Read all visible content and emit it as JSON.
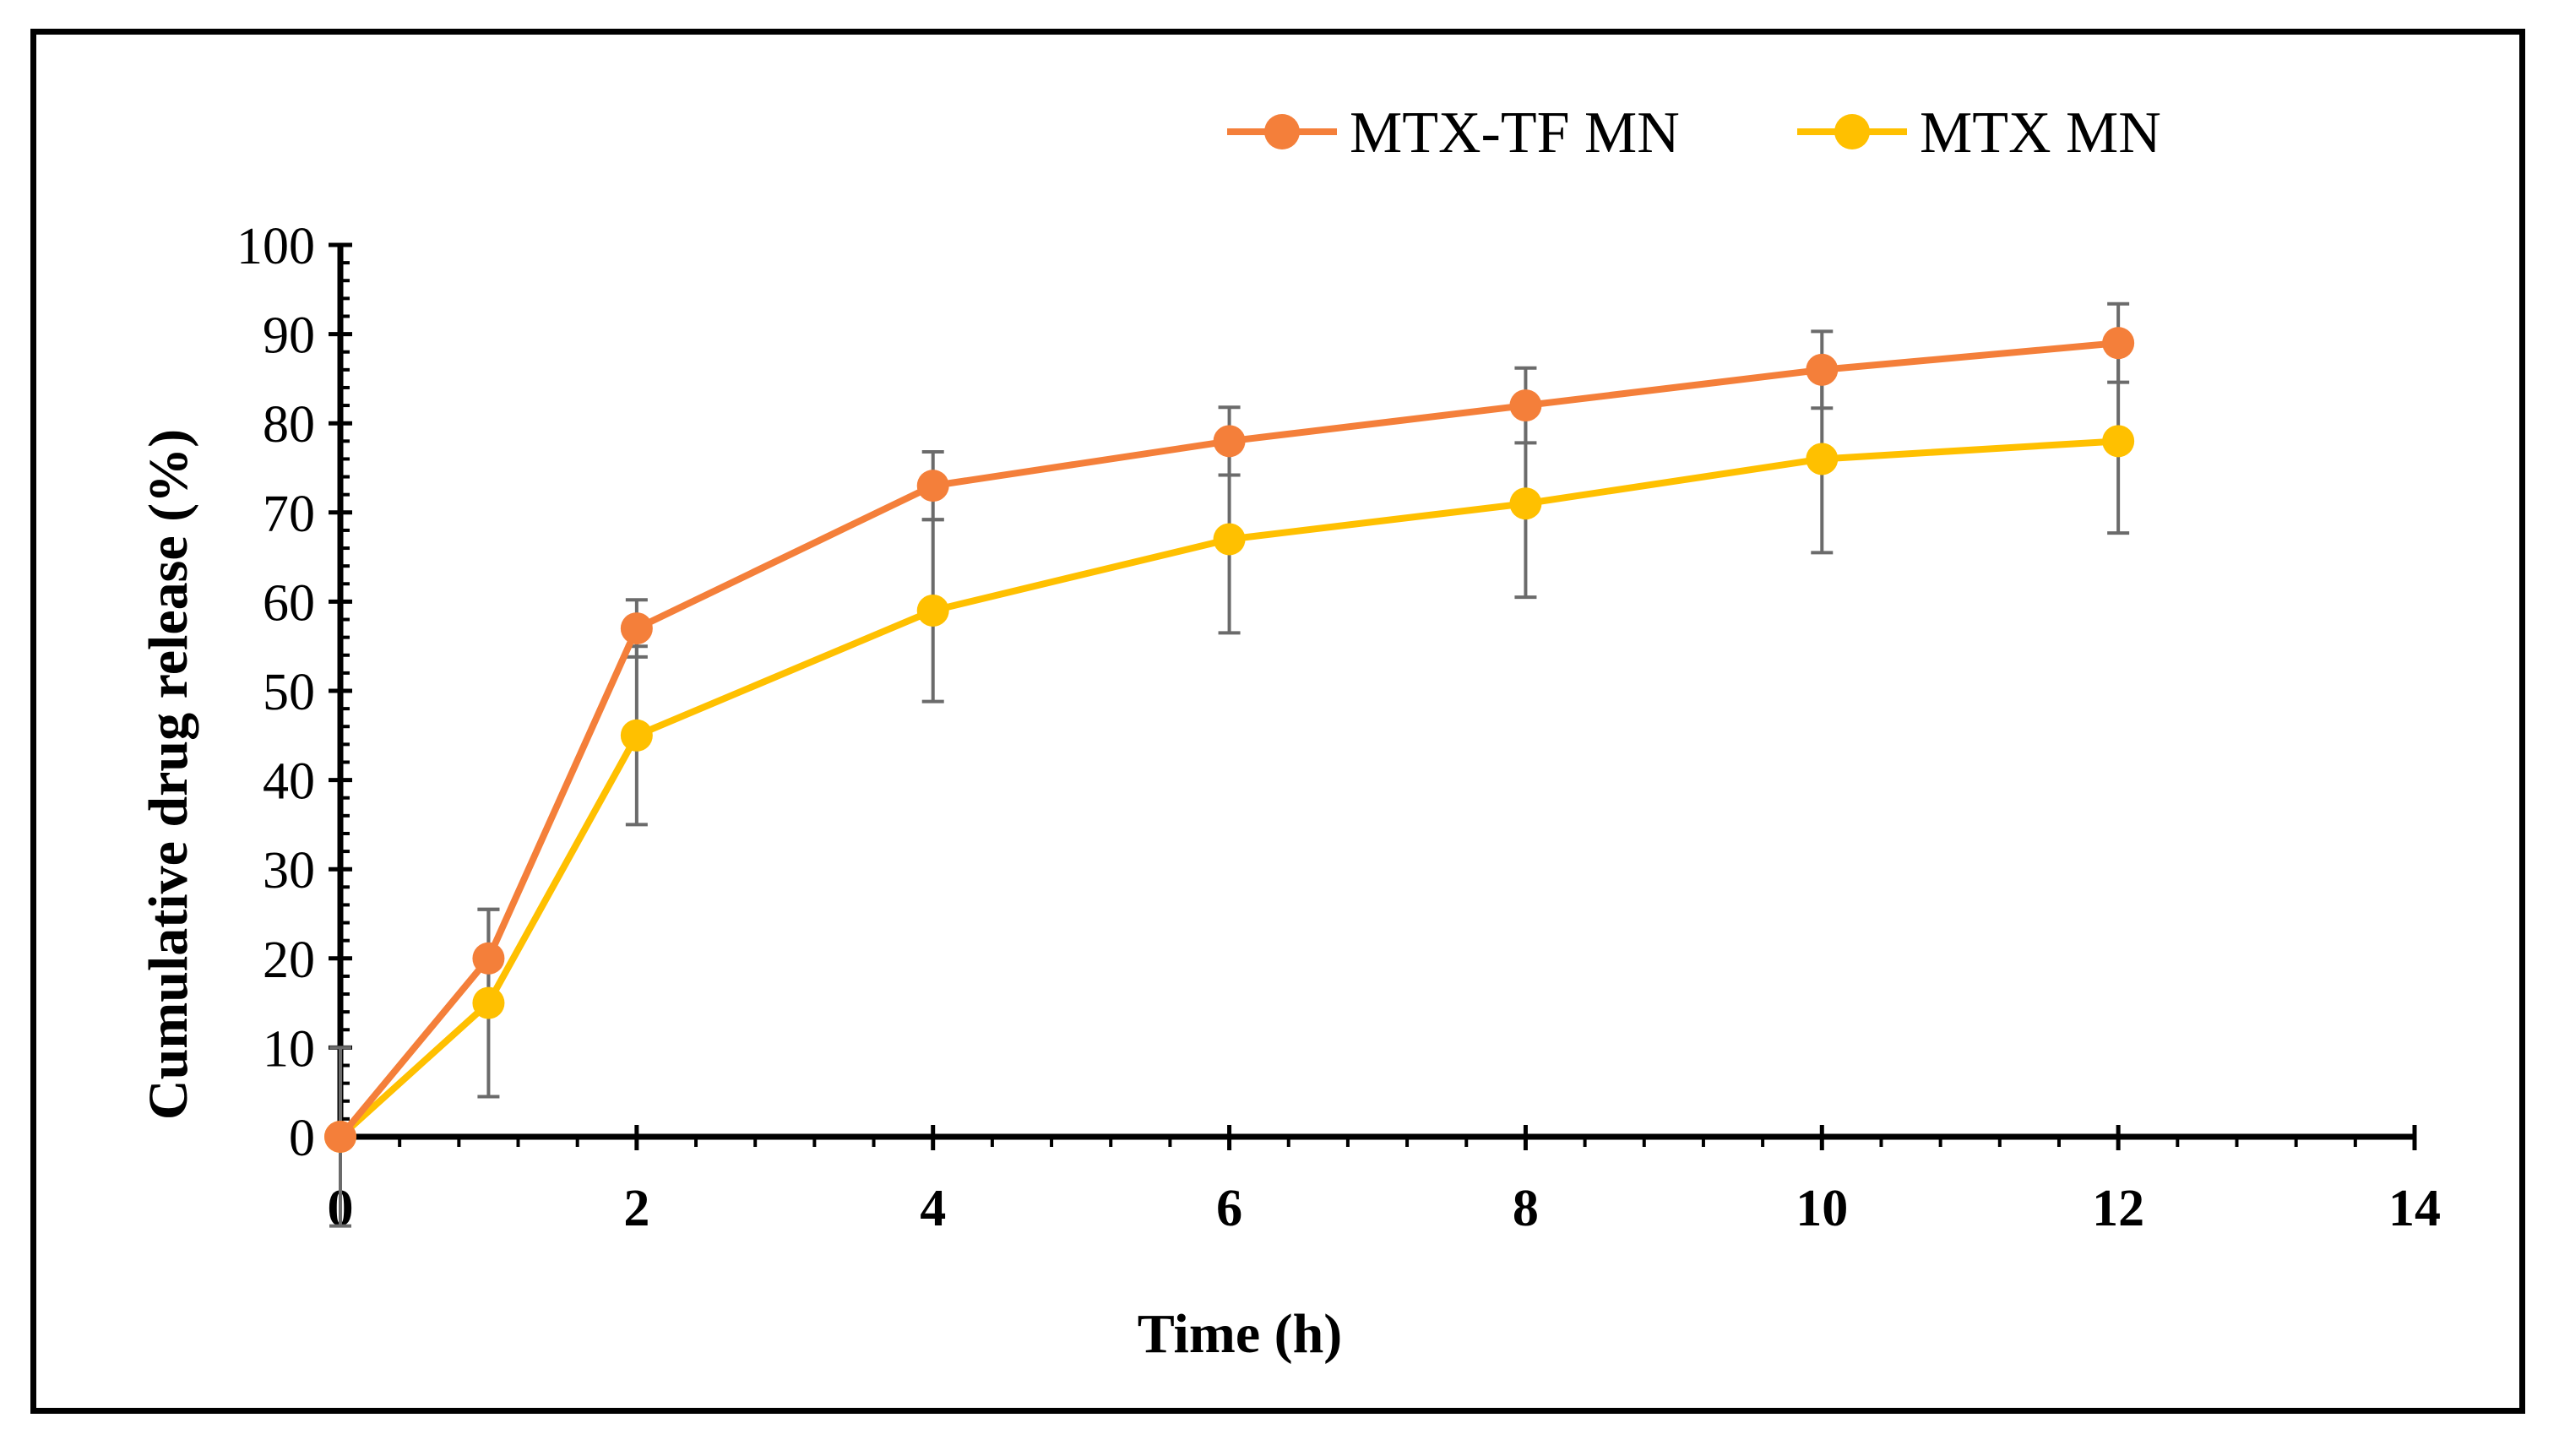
{
  "chart_data": {
    "type": "line",
    "title": "",
    "xlabel": "Time (h)",
    "ylabel": "Cumulative drug release (%)",
    "xlim": [
      0,
      14
    ],
    "ylim": [
      0,
      100
    ],
    "xticks": [
      0,
      2,
      4,
      6,
      8,
      10,
      12,
      14
    ],
    "yticks": [
      0,
      10,
      20,
      30,
      40,
      50,
      60,
      70,
      80,
      90,
      100
    ],
    "grid": false,
    "legend_position": "top-center",
    "x": [
      0,
      1,
      2,
      4,
      6,
      8,
      10,
      12
    ],
    "series": [
      {
        "name": "MTX-TF MN",
        "color": "#f47f3a",
        "values": [
          0,
          20,
          57,
          73,
          78,
          82,
          86,
          89
        ],
        "errors": [
          0,
          5.5,
          3.2,
          3.8,
          3.8,
          4.2,
          4.3,
          4.4
        ]
      },
      {
        "name": "MTX MN",
        "color": "#ffc000",
        "values": [
          0,
          15,
          45,
          59,
          67,
          71,
          76,
          78
        ],
        "errors": [
          10,
          10.5,
          10,
          10.2,
          10.5,
          10.5,
          10.5,
          10.3
        ]
      }
    ]
  }
}
